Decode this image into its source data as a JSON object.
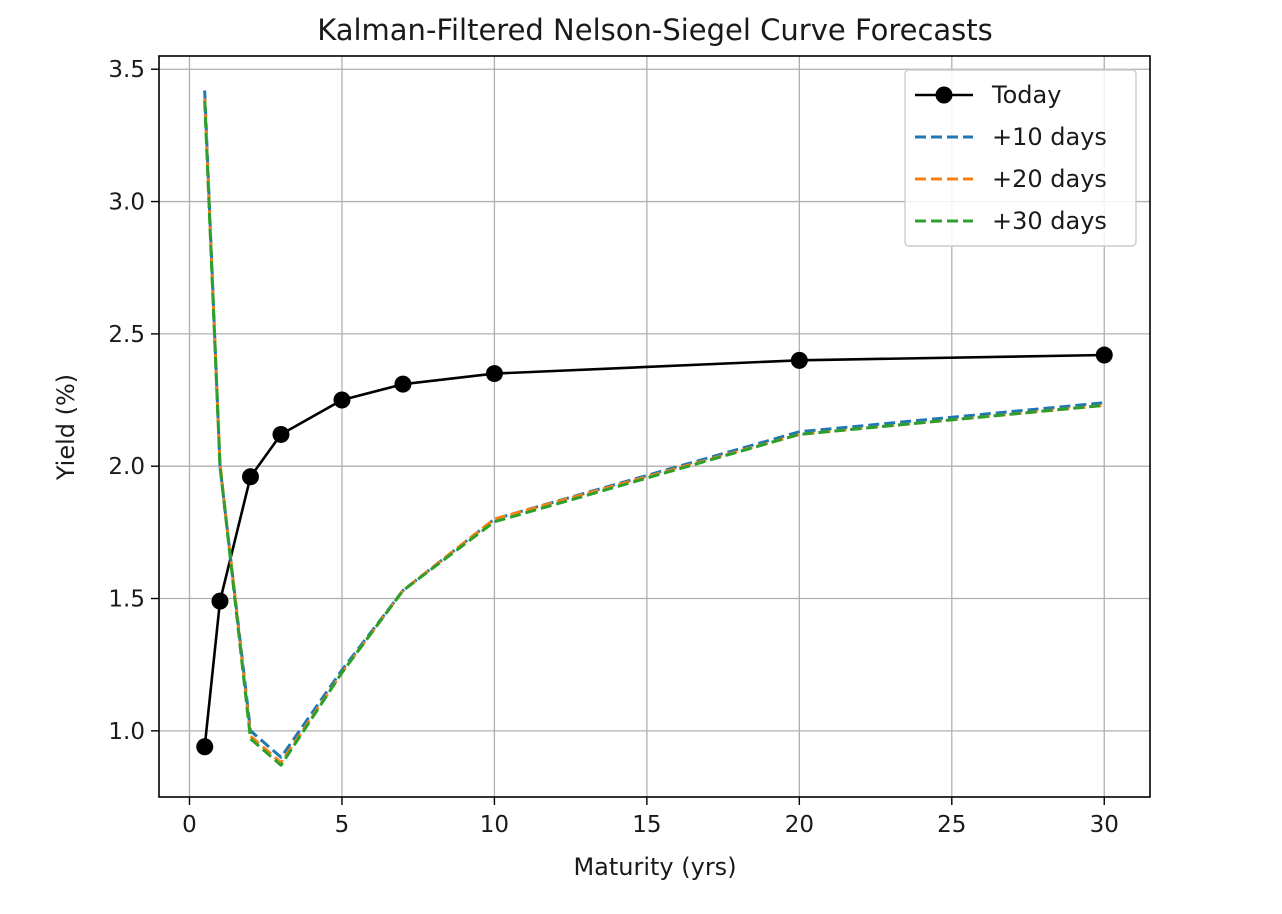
{
  "chart_data": {
    "type": "line",
    "title": "Kalman-Filtered Nelson-Siegel Curve Forecasts",
    "xlabel": "Maturity (yrs)",
    "ylabel": "Yield (%)",
    "xlim": [
      -1.0,
      31.5
    ],
    "ylim": [
      0.75,
      3.55
    ],
    "xticks": [
      0,
      5,
      10,
      15,
      20,
      25,
      30
    ],
    "yticks": [
      1.0,
      1.5,
      2.0,
      2.5,
      3.0,
      3.5
    ],
    "xtick_labels": [
      "0",
      "5",
      "10",
      "15",
      "20",
      "25",
      "30"
    ],
    "ytick_labels": [
      "1.0",
      "1.5",
      "2.0",
      "2.5",
      "3.0",
      "3.5"
    ],
    "grid": true,
    "legend_position": "top-right",
    "x": [
      0.5,
      1,
      2,
      3,
      5,
      7,
      10,
      20,
      30
    ],
    "series": [
      {
        "name": "Today",
        "style": "solid",
        "marker": "circle",
        "color": "#000000",
        "values": [
          0.94,
          1.49,
          1.96,
          2.12,
          2.25,
          2.31,
          2.35,
          2.4,
          2.42
        ]
      },
      {
        "name": "+10 days",
        "style": "dashed",
        "marker": "none",
        "color": "#1f77b4",
        "values": [
          3.42,
          2.0,
          1.0,
          0.9,
          1.23,
          1.53,
          1.8,
          2.13,
          2.24
        ]
      },
      {
        "name": "+20 days",
        "style": "dashed",
        "marker": "none",
        "color": "#ff7f0e",
        "values": [
          3.39,
          2.01,
          0.98,
          0.88,
          1.22,
          1.53,
          1.8,
          2.12,
          2.23
        ]
      },
      {
        "name": "+30 days",
        "style": "dashed",
        "marker": "none",
        "color": "#2ca02c",
        "values": [
          3.38,
          2.0,
          0.97,
          0.87,
          1.22,
          1.53,
          1.79,
          2.12,
          2.23
        ]
      }
    ]
  }
}
